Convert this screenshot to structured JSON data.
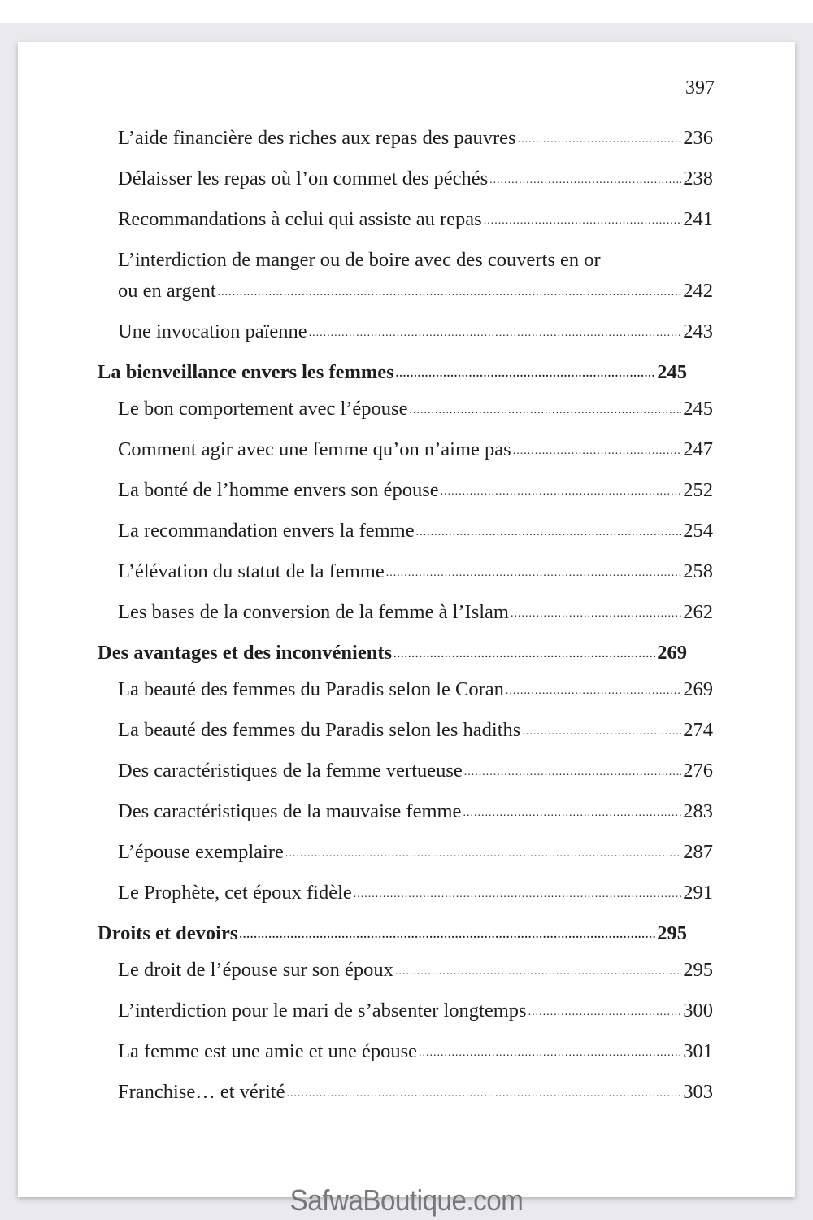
{
  "page_number": "397",
  "entries": [
    {
      "level": "sub",
      "lines": [
        "L’aide financière des riches aux repas des pauvres"
      ],
      "page": "236"
    },
    {
      "level": "sub",
      "lines": [
        "Délaisser les repas où l’on commet des péchés"
      ],
      "page": "238"
    },
    {
      "level": "sub",
      "lines": [
        "Recommandations à celui qui assiste au repas"
      ],
      "page": "241"
    },
    {
      "level": "sub",
      "lines": [
        "L’interdiction de manger ou de boire avec des couverts en or",
        "ou en argent"
      ],
      "page": "242"
    },
    {
      "level": "sub",
      "lines": [
        "Une invocation païenne"
      ],
      "page": "243"
    },
    {
      "level": "head",
      "lines": [
        "La bienveillance envers les femmes"
      ],
      "page": "245"
    },
    {
      "level": "sub",
      "lines": [
        "Le bon comportement avec l’épouse"
      ],
      "page": "245"
    },
    {
      "level": "sub",
      "lines": [
        "Comment agir avec une femme qu’on n’aime pas"
      ],
      "page": "247"
    },
    {
      "level": "sub",
      "lines": [
        "La bonté de l’homme envers son épouse"
      ],
      "page": "252"
    },
    {
      "level": "sub",
      "lines": [
        "La recommandation envers la femme"
      ],
      "page": "254"
    },
    {
      "level": "sub",
      "lines": [
        "L’élévation du statut de la femme"
      ],
      "page": "258"
    },
    {
      "level": "sub",
      "lines": [
        "Les bases de la conversion de la femme à l’Islam"
      ],
      "page": "262"
    },
    {
      "level": "head",
      "lines": [
        "Des avantages et des inconvénients"
      ],
      "page": "269"
    },
    {
      "level": "sub",
      "lines": [
        "La beauté des femmes du Paradis selon le Coran"
      ],
      "page": "269"
    },
    {
      "level": "sub",
      "lines": [
        "La beauté des femmes du Paradis selon les hadiths"
      ],
      "page": "274"
    },
    {
      "level": "sub",
      "lines": [
        "Des caractéristiques de la femme vertueuse"
      ],
      "page": "276"
    },
    {
      "level": "sub",
      "lines": [
        "Des caractéristiques de la mauvaise femme"
      ],
      "page": "283"
    },
    {
      "level": "sub",
      "lines": [
        "L’épouse exemplaire"
      ],
      "page": "287"
    },
    {
      "level": "sub",
      "lines": [
        "Le Prophète, cet époux fidèle"
      ],
      "page": "291"
    },
    {
      "level": "head",
      "lines": [
        "Droits et devoirs"
      ],
      "page": "295"
    },
    {
      "level": "sub",
      "lines": [
        "Le droit de l’épouse sur son époux"
      ],
      "page": "295"
    },
    {
      "level": "sub",
      "lines": [
        "L’interdiction pour le mari de s’absenter longtemps"
      ],
      "page": "300"
    },
    {
      "level": "sub",
      "lines": [
        "La femme est une amie et une épouse"
      ],
      "page": "301"
    },
    {
      "level": "sub",
      "lines": [
        "Franchise… et vérité"
      ],
      "page": "303"
    }
  ],
  "watermark": "SafwaBoutique.com"
}
